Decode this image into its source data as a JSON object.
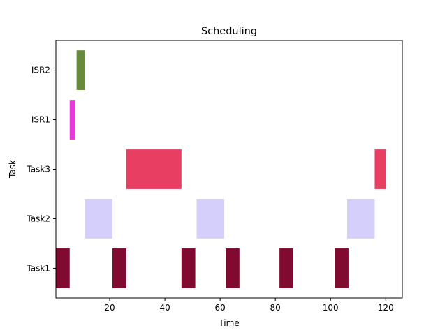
{
  "chart_data": {
    "type": "bar",
    "orientation": "horizontal-gantt",
    "title": "Scheduling",
    "xlabel": "Time",
    "ylabel": "Task",
    "xlim": [
      0.5,
      126
    ],
    "x_ticks": [
      20,
      40,
      60,
      80,
      100,
      120
    ],
    "grid": false,
    "categories": [
      "Task1",
      "Task2",
      "Task3",
      "ISR1",
      "ISR2"
    ],
    "series": [
      {
        "name": "Task1",
        "color": "#800a30",
        "intervals": [
          [
            0.5,
            5.5
          ],
          [
            21,
            26
          ],
          [
            46,
            51
          ],
          [
            62,
            67
          ],
          [
            81.5,
            86.5
          ],
          [
            101.5,
            106.5
          ]
        ]
      },
      {
        "name": "Task2",
        "color": "#d4d0fb",
        "intervals": [
          [
            11,
            21
          ],
          [
            51.5,
            61.5
          ],
          [
            106,
            116
          ]
        ]
      },
      {
        "name": "Task3",
        "color": "#e83e62",
        "intervals": [
          [
            26,
            46
          ],
          [
            116,
            120
          ]
        ]
      },
      {
        "name": "ISR1",
        "color": "#e63ad8",
        "intervals": [
          [
            5.5,
            7.5
          ]
        ]
      },
      {
        "name": "ISR2",
        "color": "#678a3c",
        "intervals": [
          [
            8,
            11
          ]
        ]
      }
    ]
  }
}
